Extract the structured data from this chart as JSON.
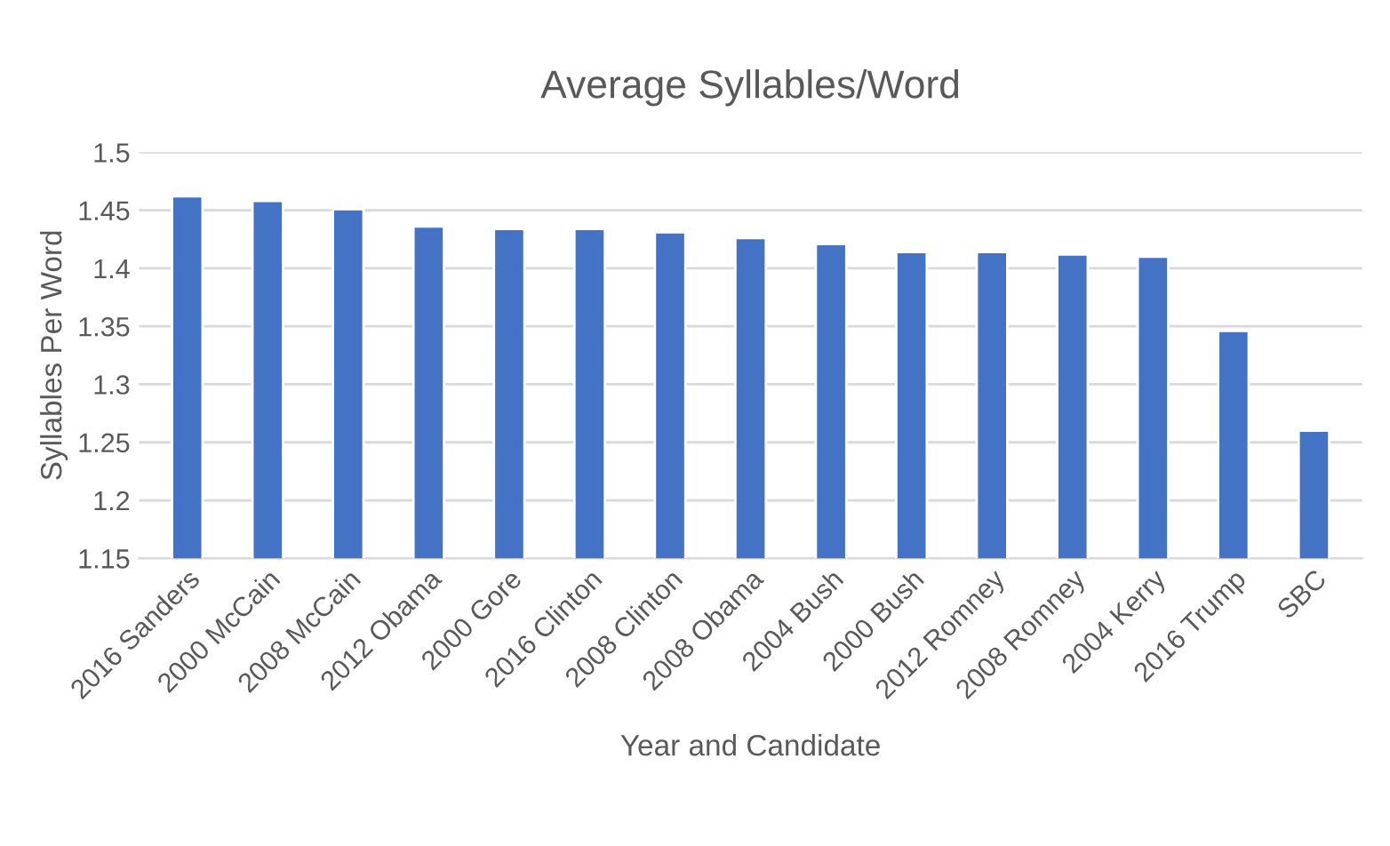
{
  "chart_data": {
    "type": "bar",
    "title": "Average Syllables/Word",
    "xlabel": "Year and Candidate",
    "ylabel": "Syllables Per Word",
    "categories": [
      "2016 Sanders",
      "2000 McCain",
      "2008 McCain",
      "2012 Obama",
      "2000 Gore",
      "2016 Clinton",
      "2008 Clinton",
      "2008 Obama",
      "2004 Bush",
      "2000 Bush",
      "2012 Romney",
      "2008 Romney",
      "2004 Kerry",
      "2016 Trump",
      "SBC"
    ],
    "values": [
      1.462,
      1.458,
      1.451,
      1.436,
      1.434,
      1.434,
      1.431,
      1.426,
      1.421,
      1.414,
      1.414,
      1.412,
      1.41,
      1.346,
      1.26
    ],
    "color": "#4472c4",
    "ylim": [
      1.15,
      1.5
    ],
    "yticks": [
      1.15,
      1.2,
      1.25,
      1.3,
      1.35,
      1.4,
      1.45,
      1.5
    ],
    "grid": "y"
  }
}
